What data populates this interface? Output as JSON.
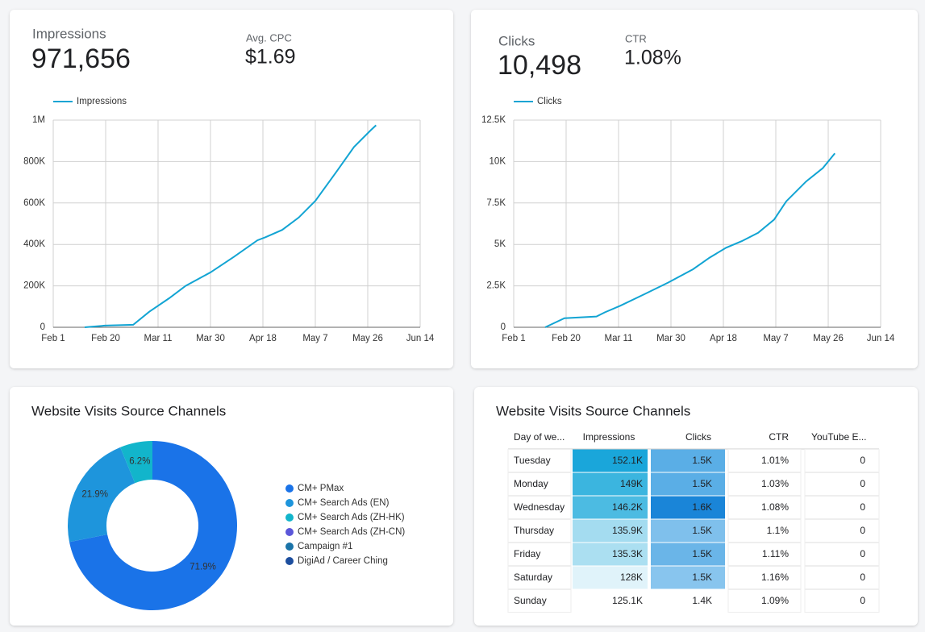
{
  "scorecards": [
    {
      "label": "Impressions",
      "value": "971,656"
    },
    {
      "label": "Avg. CPC",
      "value": "$1.69"
    },
    {
      "label": "Clicks",
      "value": "10,498"
    },
    {
      "label": "CTR",
      "value": "1.08%"
    }
  ],
  "chart_data": [
    {
      "type": "line",
      "legend": "top-left",
      "grid": true,
      "x": [
        11.4,
        18.7,
        29,
        34.8,
        42,
        48,
        57,
        65.5,
        74,
        77,
        83,
        89,
        95,
        102.6,
        109,
        115,
        117
      ],
      "series": [
        {
          "name": "Impressions",
          "color": "#12a4d3",
          "values": [
            0,
            8000,
            12000,
            75000,
            140000,
            200000,
            265000,
            340000,
            420000,
            435000,
            470000,
            530000,
            610000,
            750000,
            870000,
            950000,
            975000
          ]
        }
      ],
      "xlim": [
        0,
        133
      ],
      "xticks": [
        {
          "value": 0,
          "label": "Feb 1"
        },
        {
          "value": 19,
          "label": "Feb 20"
        },
        {
          "value": 38,
          "label": "Mar 11"
        },
        {
          "value": 57,
          "label": "Mar 30"
        },
        {
          "value": 76,
          "label": "Apr 18"
        },
        {
          "value": 95,
          "label": "May 7"
        },
        {
          "value": 114,
          "label": "May 26"
        },
        {
          "value": 133,
          "label": "Jun 14"
        }
      ],
      "ylim": [
        0,
        1000000
      ],
      "yticks": [
        0,
        {
          "value": 200000,
          "label": "200K"
        },
        {
          "value": 400000,
          "label": "400K"
        },
        {
          "value": 600000,
          "label": "600K"
        },
        {
          "value": 800000,
          "label": "800K"
        },
        {
          "value": 1000000,
          "label": "1M"
        }
      ]
    },
    {
      "type": "line",
      "legend": "top-left",
      "grid": true,
      "x": [
        11.4,
        18.4,
        30,
        33,
        38.6,
        47.4,
        56,
        65,
        71,
        77,
        82.7,
        88.6,
        94.4,
        98.8,
        106,
        112,
        116.4
      ],
      "series": [
        {
          "name": "Clicks",
          "color": "#12a4d3",
          "values": [
            0,
            550,
            650,
            900,
            1300,
            2000,
            2700,
            3500,
            4200,
            4800,
            5200,
            5700,
            6500,
            7600,
            8800,
            9600,
            10498
          ]
        }
      ],
      "xlim": [
        0,
        133
      ],
      "xticks": [
        {
          "value": 0,
          "label": "Feb 1"
        },
        {
          "value": 19,
          "label": "Feb 20"
        },
        {
          "value": 38,
          "label": "Mar 11"
        },
        {
          "value": 57,
          "label": "Mar 30"
        },
        {
          "value": 76,
          "label": "Apr 18"
        },
        {
          "value": 95,
          "label": "May 7"
        },
        {
          "value": 114,
          "label": "May 26"
        },
        {
          "value": 133,
          "label": "Jun 14"
        }
      ],
      "ylim": [
        0,
        12500
      ],
      "yticks": [
        0,
        {
          "value": 2500,
          "label": "2.5K"
        },
        {
          "value": 5000,
          "label": "5K"
        },
        {
          "value": 7500,
          "label": "7.5K"
        },
        {
          "value": 10000,
          "label": "10K"
        },
        {
          "value": 12500,
          "label": "12.5K"
        }
      ]
    },
    {
      "type": "donut",
      "title": "Website Visits Source Channels",
      "legend": "right",
      "categories": [
        "CM+ PMax",
        "CM+ Search Ads (EN)",
        "CM+ Search Ads (ZH-HK)",
        "CM+ Search Ads (ZH-CN)",
        "Campaign #1",
        "DigiAd / Career Ching"
      ],
      "colors": [
        "#1a73e8",
        "#1e95dc",
        "#12b5cb",
        "#5b57d9",
        "#1a73a8",
        "#1d4e9e"
      ],
      "values": [
        71.9,
        21.9,
        6.2,
        0,
        0,
        0
      ],
      "value_labels": [
        "71.9%",
        "21.9%",
        "6.2%",
        null,
        null,
        null
      ]
    }
  ],
  "table": {
    "title": "Website Visits Source Channels",
    "header": [
      "Day of we...",
      "Impressions",
      "Clicks",
      "CTR",
      "YouTube E..."
    ],
    "rows": [
      [
        "Tuesday",
        "152.1K",
        "1.5K",
        "1.01%",
        "0"
      ],
      [
        "Monday",
        "149K",
        "1.5K",
        "1.03%",
        "0"
      ],
      [
        "Wednesday",
        "146.2K",
        "1.6K",
        "1.08%",
        "0"
      ],
      [
        "Thursday",
        "135.9K",
        "1.5K",
        "1.1%",
        "0"
      ],
      [
        "Friday",
        "135.3K",
        "1.5K",
        "1.11%",
        "0"
      ],
      [
        "Saturday",
        "128K",
        "1.5K",
        "1.16%",
        "0"
      ],
      [
        "Sunday",
        "125.1K",
        "1.4K",
        "1.09%",
        "0"
      ]
    ],
    "impressions_colors": [
      "#1aa6da",
      "#3bb5df",
      "#4cbbe2",
      "#a4dcf0",
      "#abdff1",
      "#e0f3fa",
      "#ffffff"
    ],
    "clicks_colors": [
      "#5aaee6",
      "#5aaee6",
      "#1a85d8",
      "#7fc0ec",
      "#6ab5e8",
      "#88c5ee",
      "#ffffff"
    ]
  }
}
